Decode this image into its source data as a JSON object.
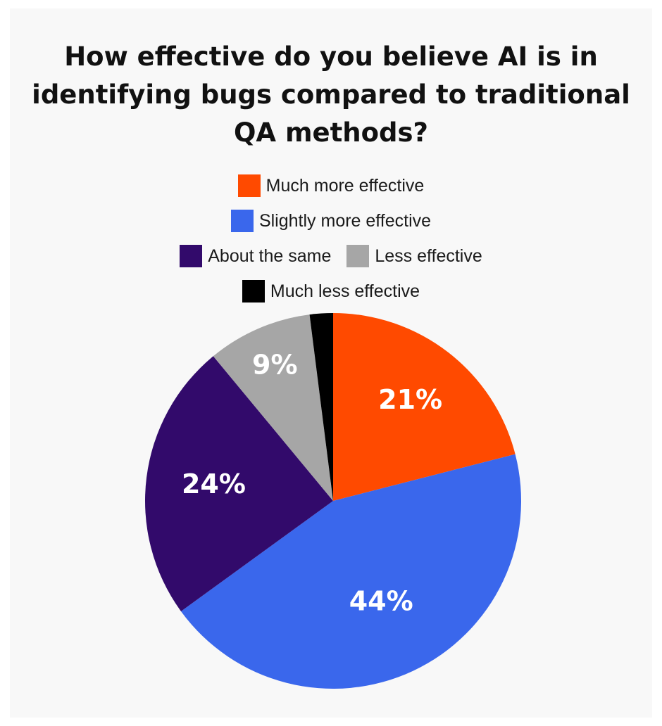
{
  "chart_data": {
    "type": "pie",
    "title": "How effective do you believe AI is in identifying bugs compared to traditional QA methods?",
    "title_lines": [
      "How effective do you believe AI is in",
      "identifying bugs compared to traditional",
      "QA methods?"
    ],
    "categories": [
      "Much more effective",
      "Slightly more effective",
      "About the same",
      "Less effective",
      "Much less effective"
    ],
    "values": [
      21,
      44,
      24,
      9,
      2
    ],
    "labels": [
      "21%",
      "44%",
      "24%",
      "9%",
      ""
    ],
    "colors": [
      "#ff4a00",
      "#3a67ec",
      "#320a6b",
      "#a6a6a6",
      "#000000"
    ],
    "legend_position": "top"
  }
}
